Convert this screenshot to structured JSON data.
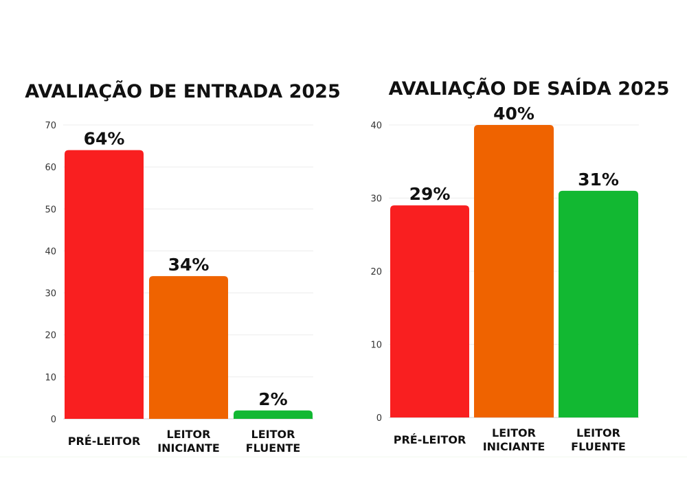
{
  "chart_data": [
    {
      "type": "bar",
      "title": "AVALIAÇÃO DE ENTRADA 2025",
      "categories": [
        "PRÉ-LEITOR",
        "LEITOR INICIANTE",
        "LEITOR FLUENTE"
      ],
      "category_lines": [
        [
          "PRÉ-LEITOR"
        ],
        [
          "LEITOR",
          "INICIANTE"
        ],
        [
          "LEITOR",
          "FLUENTE"
        ]
      ],
      "values": [
        64,
        34,
        2
      ],
      "data_labels": [
        "64%",
        "34%",
        "2%"
      ],
      "colors": [
        "#f91f20",
        "#ef6300",
        "#12b832"
      ],
      "ylim": [
        0,
        70
      ],
      "yticks": [
        0,
        10,
        20,
        30,
        40,
        50,
        60,
        70
      ],
      "grid": true,
      "xlabel": "",
      "ylabel": ""
    },
    {
      "type": "bar",
      "title": "AVALIAÇÃO DE SAÍDA 2025",
      "categories": [
        "PRÉ-LEITOR",
        "LEITOR INICIANTE",
        "LEITOR FLUENTE"
      ],
      "category_lines": [
        [
          "PRÉ-LEITOR"
        ],
        [
          "LEITOR",
          "INICIANTE"
        ],
        [
          "LEITOR",
          "FLUENTE"
        ]
      ],
      "values": [
        29,
        40,
        31
      ],
      "data_labels": [
        "29%",
        "40%",
        "31%"
      ],
      "colors": [
        "#f91f20",
        "#ef6300",
        "#12b832"
      ],
      "ylim": [
        0,
        40
      ],
      "yticks": [
        0,
        10,
        20,
        30,
        40
      ],
      "grid": true,
      "xlabel": "",
      "ylabel": ""
    }
  ]
}
